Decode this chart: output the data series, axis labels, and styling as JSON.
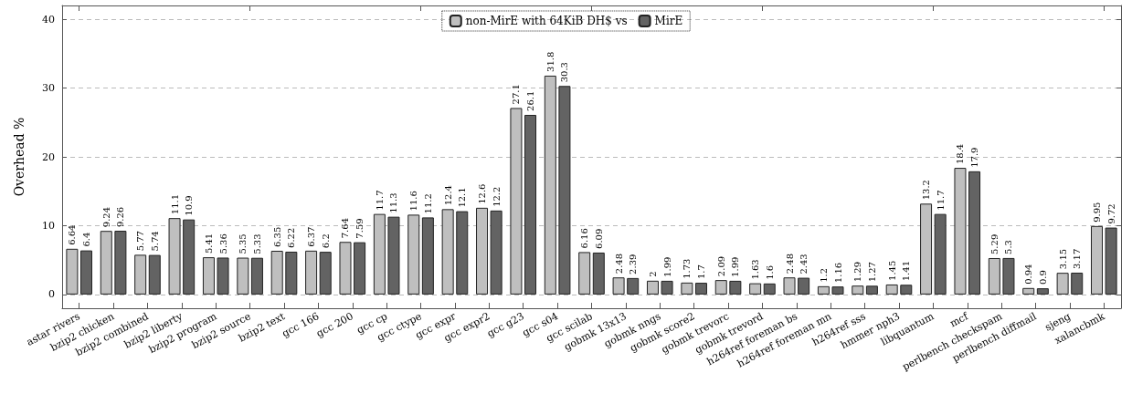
{
  "chart_data": {
    "type": "bar",
    "ylabel": "Overhead %",
    "categories": [
      "astar rivers",
      "bzip2 chicken",
      "bzip2 combined",
      "bzip2 liberty",
      "bzip2 program",
      "bzip2 source",
      "bzip2 text",
      "gcc 166",
      "gcc 200",
      "gcc cp",
      "gcc ctype",
      "gcc expr",
      "gcc expr2",
      "gcc g23",
      "gcc s04",
      "gcc scilab",
      "gobmk 13x13",
      "gobmk nngs",
      "gobmk score2",
      "gobmk trevorc",
      "gobmk trevord",
      "h264ref foreman bs",
      "h264ref foreman mn",
      "h264ref sss",
      "hmmer nph3",
      "libquantum",
      "mcf",
      "perlbench checkspam",
      "perlbench diffmail",
      "sjeng",
      "xalancbmk"
    ],
    "series": [
      {
        "name": "non-MirE with 64KiB DH$ vs",
        "color": "#bfbfbf",
        "values": [
          6.64,
          9.24,
          5.77,
          11.1,
          5.41,
          5.35,
          6.35,
          6.37,
          7.64,
          11.7,
          11.6,
          12.4,
          12.6,
          27.1,
          31.8,
          6.16,
          2.48,
          2,
          1.73,
          2.09,
          1.63,
          2.48,
          1.2,
          1.29,
          1.45,
          13.2,
          18.4,
          5.29,
          0.94,
          3.15,
          9.95
        ]
      },
      {
        "name": "MirE",
        "color": "#636363",
        "values": [
          6.4,
          9.26,
          5.74,
          10.9,
          5.36,
          5.33,
          6.22,
          6.2,
          7.59,
          11.3,
          11.2,
          12.1,
          12.2,
          26.1,
          30.3,
          6.09,
          2.39,
          1.99,
          1.7,
          1.99,
          1.6,
          2.43,
          1.16,
          1.27,
          1.41,
          11.7,
          17.9,
          5.3,
          0.9,
          3.17,
          9.72
        ]
      }
    ],
    "ylim": [
      -2,
      42
    ],
    "yticks": [
      0,
      10,
      20,
      30,
      40
    ],
    "grid": "y",
    "legend": "top",
    "data_labels": true
  }
}
